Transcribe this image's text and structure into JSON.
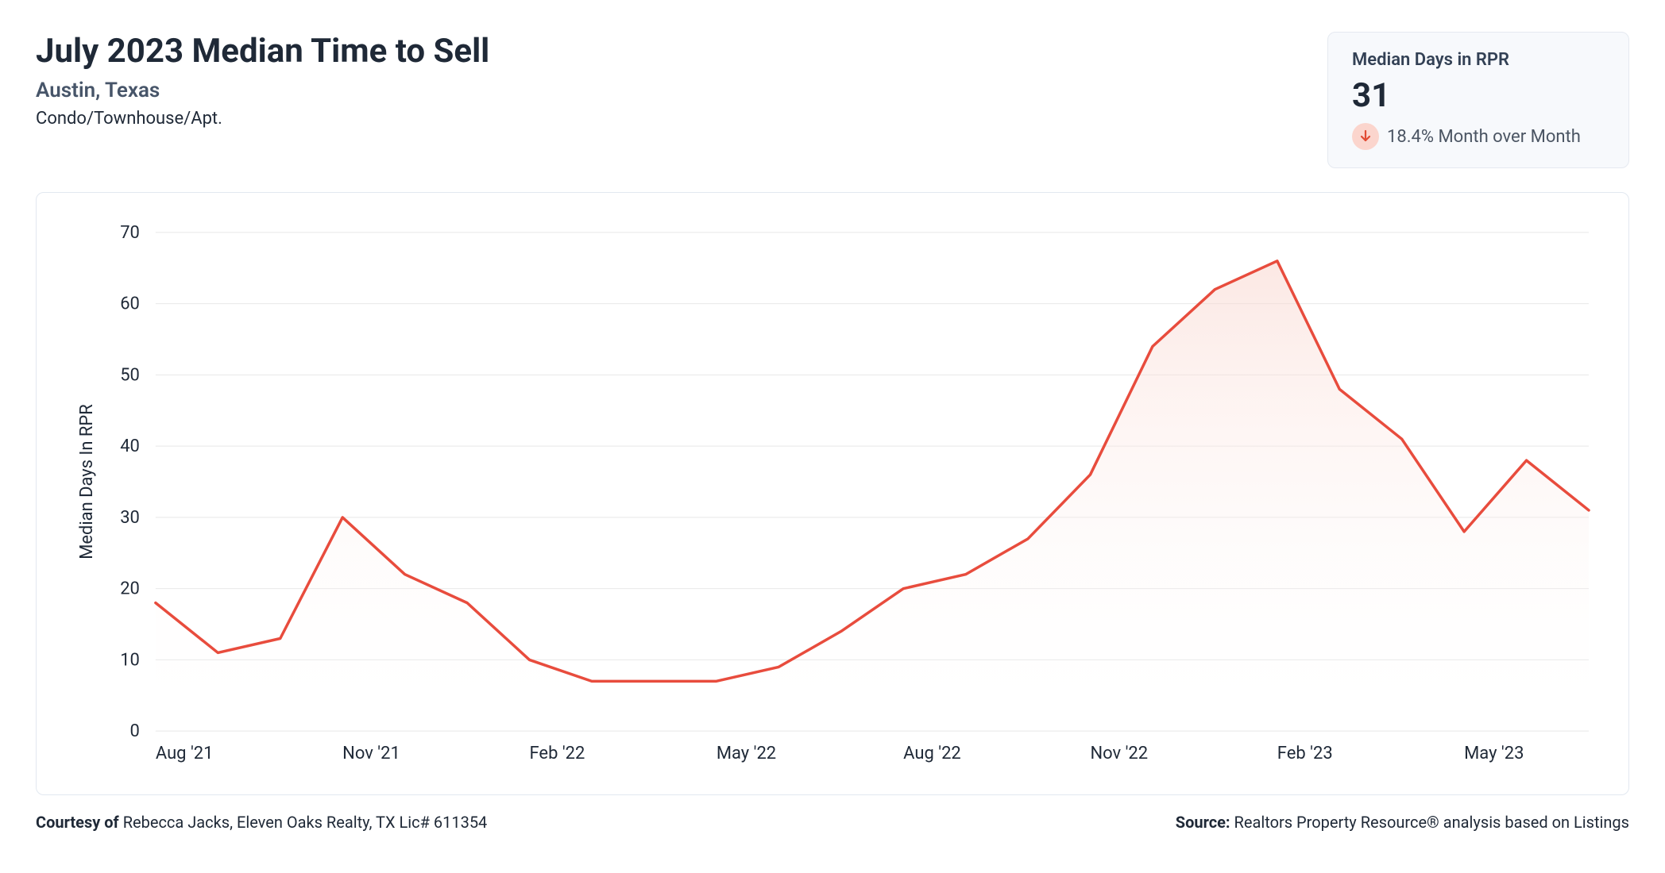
{
  "header": {
    "title": "July 2023 Median Time to Sell",
    "location": "Austin, Texas",
    "category": "Condo/Townhouse/Apt."
  },
  "stat_card": {
    "label": "Median Days in RPR",
    "value": "31",
    "change_text": "18.4% Month over Month",
    "direction": "down",
    "arrow_color": "#e14a33",
    "badge_bg": "#fbd5cd"
  },
  "chart": {
    "type": "area",
    "ylabel": "Median Days In RPR",
    "ylabel_fontsize": 22,
    "ylim": [
      0,
      70
    ],
    "ytick_step": 10,
    "yticks": [
      0,
      10,
      20,
      30,
      40,
      50,
      60,
      70
    ],
    "x_categories": [
      "Aug '21",
      "Sep '21",
      "Oct '21",
      "Nov '21",
      "Dec '21",
      "Jan '22",
      "Feb '22",
      "Mar '22",
      "Apr '22",
      "May '22",
      "Jun '22",
      "Jul '22",
      "Aug '22",
      "Sep '22",
      "Oct '22",
      "Nov '22",
      "Dec '22",
      "Jan '23",
      "Feb '23",
      "Mar '23",
      "Apr '23",
      "May '23",
      "Jun '23",
      "Jul '23"
    ],
    "x_tick_labels": [
      "Aug '21",
      "Nov '21",
      "Feb '22",
      "May '22",
      "Aug '22",
      "Nov '22",
      "Feb '23",
      "May '23"
    ],
    "x_tick_indices": [
      0,
      3,
      6,
      9,
      12,
      15,
      18,
      21
    ],
    "values": [
      18,
      11,
      13,
      30,
      22,
      18,
      10,
      7,
      7,
      7,
      9,
      14,
      20,
      22,
      27,
      36,
      54,
      62,
      66,
      48,
      41,
      28,
      38,
      31
    ],
    "line_color": "#e84c3d",
    "line_width": 3.5,
    "fill_top_color": "#f9d5cd",
    "fill_bottom_color": "#ffffff",
    "fill_opacity": 0.55,
    "grid_color": "#e8e8e8",
    "axis_color": "#888888",
    "tick_font_size": 22,
    "tick_color": "#1f2937",
    "background_color": "#ffffff"
  },
  "footer": {
    "left_label": "Courtesy of ",
    "left_value": "Rebecca Jacks, Eleven Oaks Realty, TX Lic# 611354",
    "right_label": "Source: ",
    "right_value": "Realtors Property Resource® analysis based on Listings"
  }
}
